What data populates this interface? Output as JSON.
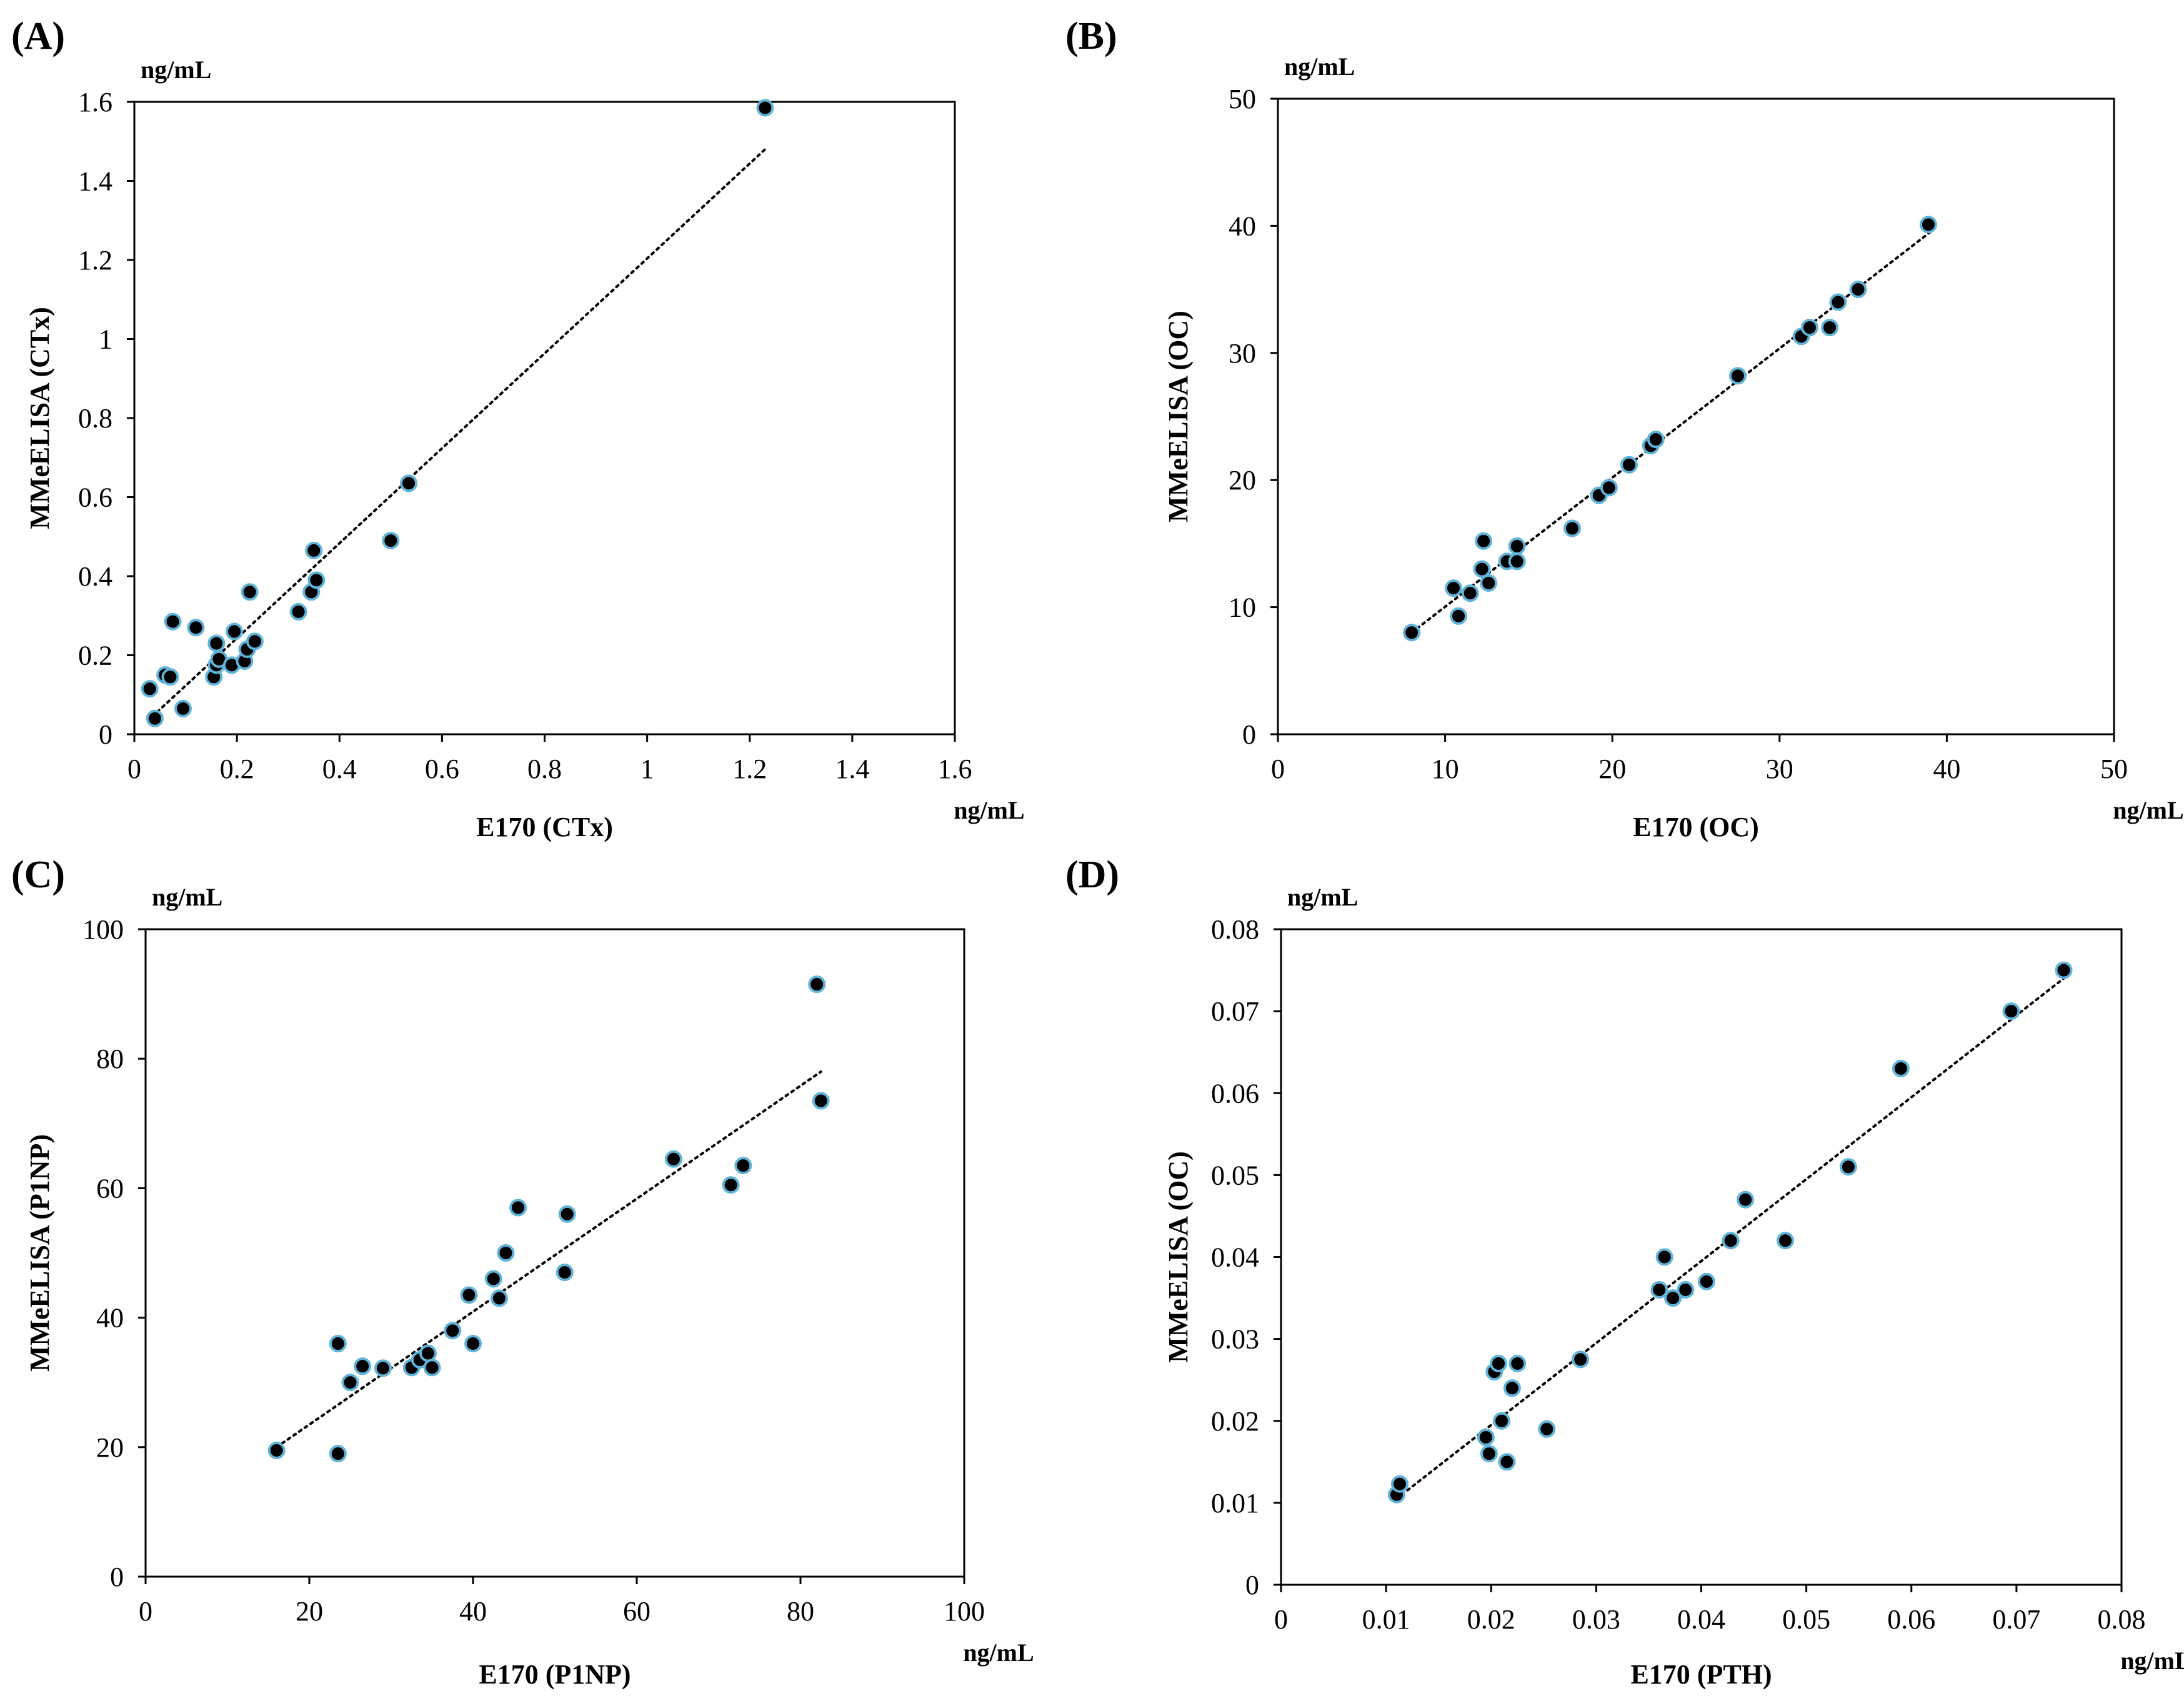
{
  "chart_data": [
    {
      "type": "scatter",
      "panel_label": "(A)",
      "xlabel": "E170 (CTx)",
      "ylabel": "MMeELISA (CTx)",
      "x_unit": "ng/mL",
      "y_unit": "ng/mL",
      "xlim": [
        0,
        1.6
      ],
      "ylim": [
        0,
        1.6
      ],
      "xticks": [
        "0",
        "0.2",
        "0.4",
        "0.6",
        "0.8",
        "1",
        "1.2",
        "1.4",
        "1.6"
      ],
      "yticks": [
        "0",
        "0.2",
        "0.4",
        "0.6",
        "0.8",
        "1",
        "1.2",
        "1.4",
        "1.6"
      ],
      "trendline": {
        "x": [
          0.035,
          1.23
        ],
        "y": [
          0.045,
          1.48
        ]
      },
      "points": [
        [
          0.03,
          0.115
        ],
        [
          0.04,
          0.04
        ],
        [
          0.06,
          0.15
        ],
        [
          0.07,
          0.145
        ],
        [
          0.075,
          0.285
        ],
        [
          0.095,
          0.065
        ],
        [
          0.12,
          0.27
        ],
        [
          0.155,
          0.145
        ],
        [
          0.16,
          0.175
        ],
        [
          0.16,
          0.23
        ],
        [
          0.165,
          0.19
        ],
        [
          0.19,
          0.175
        ],
        [
          0.195,
          0.26
        ],
        [
          0.215,
          0.185
        ],
        [
          0.22,
          0.215
        ],
        [
          0.225,
          0.36
        ],
        [
          0.235,
          0.235
        ],
        [
          0.32,
          0.31
        ],
        [
          0.345,
          0.36
        ],
        [
          0.35,
          0.465
        ],
        [
          0.355,
          0.39
        ],
        [
          0.5,
          0.49
        ],
        [
          0.535,
          0.635
        ],
        [
          1.23,
          1.585
        ]
      ]
    },
    {
      "type": "scatter",
      "panel_label": "(B)",
      "xlabel": "E170 (OC)",
      "ylabel": "MMeELISA (OC)",
      "x_unit": "ng/mL",
      "y_unit": "ng/mL",
      "xlim": [
        0,
        50
      ],
      "ylim": [
        0,
        50
      ],
      "xticks": [
        "0",
        "10",
        "20",
        "30",
        "40",
        "50"
      ],
      "yticks": [
        "0",
        "10",
        "20",
        "30",
        "40",
        "50"
      ],
      "trendline": {
        "x": [
          8,
          39
        ],
        "y": [
          8.0,
          39.5
        ]
      },
      "points": [
        [
          8,
          8
        ],
        [
          10.5,
          11.5
        ],
        [
          10.8,
          9.3
        ],
        [
          11.5,
          11.1
        ],
        [
          12.2,
          13
        ],
        [
          12.3,
          15.2
        ],
        [
          12.6,
          11.9
        ],
        [
          13.7,
          13.6
        ],
        [
          14.3,
          14.8
        ],
        [
          14.3,
          13.6
        ],
        [
          17.6,
          16.2
        ],
        [
          19.2,
          18.8
        ],
        [
          19.8,
          19.4
        ],
        [
          21,
          21.2
        ],
        [
          22.3,
          22.7
        ],
        [
          22.6,
          23.2
        ],
        [
          27.5,
          28.2
        ],
        [
          31.3,
          31.3
        ],
        [
          31.8,
          32
        ],
        [
          33,
          32
        ],
        [
          33.5,
          34
        ],
        [
          34.7,
          35
        ],
        [
          38.9,
          40.1
        ]
      ]
    },
    {
      "type": "scatter",
      "panel_label": "(C)",
      "xlabel": "E170 (P1NP)",
      "ylabel": "MMeELISA (P1NP)",
      "x_unit": "ng/mL",
      "y_unit": "ng/mL",
      "xlim": [
        0,
        100
      ],
      "ylim": [
        0,
        100
      ],
      "xticks": [
        "0",
        "20",
        "40",
        "60",
        "80",
        "100"
      ],
      "yticks": [
        "0",
        "20",
        "40",
        "60",
        "80",
        "100"
      ],
      "trendline": {
        "x": [
          16,
          82.5
        ],
        "y": [
          20,
          78
        ]
      },
      "points": [
        [
          16,
          19.5
        ],
        [
          23.5,
          19
        ],
        [
          23.5,
          36
        ],
        [
          25,
          30
        ],
        [
          26.5,
          32.5
        ],
        [
          29,
          32.2
        ],
        [
          32.5,
          32.3
        ],
        [
          33.5,
          33.5
        ],
        [
          34.5,
          34.5
        ],
        [
          35,
          32.3
        ],
        [
          37.5,
          38
        ],
        [
          39.5,
          43.5
        ],
        [
          40,
          36
        ],
        [
          42.5,
          46
        ],
        [
          43.2,
          43
        ],
        [
          44,
          50
        ],
        [
          45.5,
          57
        ],
        [
          51.2,
          47
        ],
        [
          51.5,
          56
        ],
        [
          64.5,
          64.5
        ],
        [
          71.5,
          60.5
        ],
        [
          73,
          63.5
        ],
        [
          82,
          91.5
        ],
        [
          82.5,
          73.5
        ]
      ]
    },
    {
      "type": "scatter",
      "panel_label": "(D)",
      "xlabel": "E170 (PTH)",
      "ylabel": "MMeELISA (OC)",
      "x_unit": "ng/mL",
      "y_unit": "ng/mL",
      "xlim": [
        0,
        0.08
      ],
      "ylim": [
        0,
        0.08
      ],
      "xticks": [
        "0",
        "0.01",
        "0.02",
        "0.03",
        "0.04",
        "0.05",
        "0.06",
        "0.07",
        "0.08"
      ],
      "yticks": [
        "0",
        "0.01",
        "0.02",
        "0.03",
        "0.04",
        "0.05",
        "0.06",
        "0.07",
        "0.08"
      ],
      "trendline": {
        "x": [
          0.011,
          0.0745
        ],
        "y": [
          0.0105,
          0.074
        ]
      },
      "points": [
        [
          0.011,
          0.011
        ],
        [
          0.0113,
          0.0123
        ],
        [
          0.0195,
          0.018
        ],
        [
          0.0198,
          0.016
        ],
        [
          0.0203,
          0.026
        ],
        [
          0.0207,
          0.027
        ],
        [
          0.021,
          0.02
        ],
        [
          0.0215,
          0.015
        ],
        [
          0.022,
          0.024
        ],
        [
          0.0225,
          0.027
        ],
        [
          0.0253,
          0.019
        ],
        [
          0.0285,
          0.0275
        ],
        [
          0.036,
          0.036
        ],
        [
          0.0365,
          0.04
        ],
        [
          0.0373,
          0.035
        ],
        [
          0.0385,
          0.036
        ],
        [
          0.0405,
          0.037
        ],
        [
          0.0428,
          0.042
        ],
        [
          0.0442,
          0.047
        ],
        [
          0.048,
          0.042
        ],
        [
          0.054,
          0.051
        ],
        [
          0.059,
          0.063
        ],
        [
          0.0695,
          0.07
        ],
        [
          0.0745,
          0.075
        ]
      ]
    }
  ]
}
